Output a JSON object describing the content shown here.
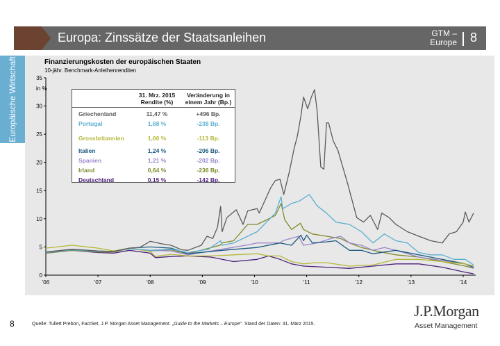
{
  "header": {
    "title": "Europa: Zinssätze der Staatsanleihen",
    "gtm": "GTM –",
    "gtm2": "Europe",
    "page": "8"
  },
  "sidebar": {
    "label": "Europäische Wirtschaft"
  },
  "footer": {
    "page": "8",
    "source_pre": "Quelle: Tullett Prebon, FactSet, J.P. Morgan Asset Management. „",
    "source_italic": "Guide to the Markets – Europe",
    "source_post": "\". Stand der Daten: 31. März 2015.",
    "logo": "J.P.Morgan",
    "logo_sub": "Asset Management"
  },
  "table": {
    "col2": "31. Mrz. 2015 Rendite (%)",
    "col2a": "31. Mrz. 2015",
    "col2b": "Rendite (%)",
    "col3a": "Veränderung in",
    "col3b": "einem Jahr (Bp.)",
    "rows": [
      {
        "country": "Griechenland",
        "yield": "11,47 %",
        "change": "+496 Bp."
      },
      {
        "country": "Portugal",
        "yield": "1,68 %",
        "change": "-238 Bp."
      },
      {
        "country": "Grossbritannien",
        "yield": "1,60 %",
        "change": "-113 Bp."
      },
      {
        "country": "Italien",
        "yield": "1,24 %",
        "change": "-206 Bp."
      },
      {
        "country": "Spanien",
        "yield": "1,21 %",
        "change": "-202 Bp."
      },
      {
        "country": "Irland",
        "yield": "0,64 %",
        "change": "-236 Bp."
      },
      {
        "country": "Deutschland",
        "yield": "0,15 %",
        "change": "-142 Bp."
      }
    ]
  },
  "chart_data": {
    "type": "line",
    "title": "Finanzierungskosten der europäischen Staaten",
    "subtitle": "10-jähr. Benchmark-Anleihenrenditen",
    "ylabel": "in %",
    "ylim": [
      0,
      35
    ],
    "yticks": [
      0,
      5,
      10,
      15,
      20,
      25,
      30,
      35
    ],
    "xlim": [
      2006,
      2014.25
    ],
    "xticks": [
      {
        "v": 2006,
        "label": "'06"
      },
      {
        "v": 2007,
        "label": "'07"
      },
      {
        "v": 2008,
        "label": "'08"
      },
      {
        "v": 2009,
        "label": "'09"
      },
      {
        "v": 2010,
        "label": "'10"
      },
      {
        "v": 2011,
        "label": "'11"
      },
      {
        "v": 2012,
        "label": "'12"
      },
      {
        "v": 2013,
        "label": "'13"
      },
      {
        "v": 2014,
        "label": "'14"
      }
    ],
    "grid": false,
    "legend": "table top-left",
    "series": [
      {
        "name": "Griechenland",
        "color": "#5a5a5a",
        "points": [
          [
            2006,
            4.1
          ],
          [
            2006.5,
            4.6
          ],
          [
            2007,
            4.3
          ],
          [
            2007.3,
            4.2
          ],
          [
            2007.6,
            4.8
          ],
          [
            2007.8,
            4.9
          ],
          [
            2008,
            6.0
          ],
          [
            2008.2,
            5.6
          ],
          [
            2008.4,
            5.3
          ],
          [
            2008.6,
            4.5
          ],
          [
            2008.72,
            4.4
          ],
          [
            2008.98,
            5.3
          ],
          [
            2009.09,
            6.9
          ],
          [
            2009.2,
            6.5
          ],
          [
            2009.29,
            8.5
          ],
          [
            2009.35,
            12.2
          ],
          [
            2009.38,
            7.7
          ],
          [
            2009.47,
            10.2
          ],
          [
            2009.65,
            11.6
          ],
          [
            2009.78,
            9.0
          ],
          [
            2009.87,
            11.4
          ],
          [
            2010.05,
            11.8
          ],
          [
            2010.09,
            11.0
          ],
          [
            2010.31,
            15.5
          ],
          [
            2010.4,
            16.8
          ],
          [
            2010.49,
            17.0
          ],
          [
            2010.56,
            14.3
          ],
          [
            2010.67,
            18.4
          ],
          [
            2010.76,
            22.5
          ],
          [
            2010.82,
            24.6
          ],
          [
            2010.89,
            28.3
          ],
          [
            2010.94,
            31.6
          ],
          [
            2011.02,
            29.5
          ],
          [
            2011.09,
            31.6
          ],
          [
            2011.15,
            32.9
          ],
          [
            2011.2,
            29.1
          ],
          [
            2011.27,
            19.2
          ],
          [
            2011.33,
            18.8
          ],
          [
            2011.38,
            27.0
          ],
          [
            2011.42,
            27.0
          ],
          [
            2011.51,
            23.8
          ],
          [
            2011.6,
            22.1
          ],
          [
            2011.78,
            16.4
          ],
          [
            2011.96,
            10.2
          ],
          [
            2012.09,
            9.4
          ],
          [
            2012.22,
            10.6
          ],
          [
            2012.36,
            8.1
          ],
          [
            2012.44,
            11.0
          ],
          [
            2012.58,
            10.2
          ],
          [
            2012.71,
            9.0
          ],
          [
            2012.93,
            7.7
          ],
          [
            2013.15,
            6.9
          ],
          [
            2013.38,
            6.1
          ],
          [
            2013.6,
            5.7
          ],
          [
            2013.73,
            7.3
          ],
          [
            2013.87,
            7.7
          ],
          [
            2014,
            9.4
          ],
          [
            2014.04,
            11.2
          ],
          [
            2014.11,
            9.4
          ],
          [
            2014.2,
            11.0
          ]
        ]
      },
      {
        "name": "Portugal",
        "color": "#5aaed0",
        "points": [
          [
            2006,
            4.0
          ],
          [
            2006.5,
            4.5
          ],
          [
            2007,
            4.2
          ],
          [
            2007.3,
            4.2
          ],
          [
            2007.6,
            4.7
          ],
          [
            2008,
            4.4
          ],
          [
            2008.4,
            4.6
          ],
          [
            2008.72,
            4.0
          ],
          [
            2009.12,
            4.6
          ],
          [
            2009.35,
            6.1
          ],
          [
            2009.38,
            5.3
          ],
          [
            2009.6,
            5.7
          ],
          [
            2009.87,
            6.9
          ],
          [
            2010.05,
            7.7
          ],
          [
            2010.23,
            9.4
          ],
          [
            2010.4,
            11.0
          ],
          [
            2010.51,
            13.9
          ],
          [
            2010.54,
            11.8
          ],
          [
            2010.71,
            12.7
          ],
          [
            2010.85,
            13.1
          ],
          [
            2011.05,
            14.3
          ],
          [
            2011.2,
            12.3
          ],
          [
            2011.38,
            11.0
          ],
          [
            2011.56,
            9.4
          ],
          [
            2011.82,
            9.0
          ],
          [
            2012.05,
            7.7
          ],
          [
            2012.27,
            5.7
          ],
          [
            2012.49,
            7.3
          ],
          [
            2012.71,
            6.1
          ],
          [
            2012.93,
            5.7
          ],
          [
            2013.15,
            4.0
          ],
          [
            2013.38,
            3.6
          ],
          [
            2013.6,
            3.6
          ],
          [
            2013.82,
            2.8
          ],
          [
            2014.04,
            2.8
          ],
          [
            2014.2,
            1.8
          ]
        ]
      },
      {
        "name": "Grossbritannien",
        "color": "#b5b83a",
        "points": [
          [
            2006,
            4.8
          ],
          [
            2006.5,
            5.3
          ],
          [
            2007,
            4.8
          ],
          [
            2007.3,
            4.3
          ],
          [
            2007.6,
            4.8
          ],
          [
            2008,
            4.2
          ],
          [
            2008.1,
            3.3
          ],
          [
            2008.4,
            3.7
          ],
          [
            2008.72,
            3.4
          ],
          [
            2009.16,
            3.4
          ],
          [
            2009.6,
            3.6
          ],
          [
            2010.05,
            3.8
          ],
          [
            2010.27,
            3.4
          ],
          [
            2010.49,
            3.4
          ],
          [
            2010.71,
            2.4
          ],
          [
            2010.94,
            2.0
          ],
          [
            2011.16,
            2.2
          ],
          [
            2011.38,
            2.2
          ],
          [
            2011.82,
            1.6
          ],
          [
            2012.27,
            1.8
          ],
          [
            2012.71,
            2.8
          ],
          [
            2013.15,
            2.8
          ],
          [
            2013.6,
            2.4
          ],
          [
            2014.04,
            2.0
          ],
          [
            2014.2,
            1.6
          ]
        ]
      },
      {
        "name": "Italien",
        "color": "#1c5a80",
        "points": [
          [
            2006,
            4.0
          ],
          [
            2006.5,
            4.5
          ],
          [
            2007,
            4.2
          ],
          [
            2007.3,
            4.2
          ],
          [
            2007.6,
            4.8
          ],
          [
            2008,
            5.0
          ],
          [
            2008.4,
            4.8
          ],
          [
            2008.72,
            3.8
          ],
          [
            2009.38,
            4.4
          ],
          [
            2010.05,
            4.9
          ],
          [
            2010.49,
            5.7
          ],
          [
            2010.71,
            5.3
          ],
          [
            2010.89,
            7.1
          ],
          [
            2010.94,
            6.1
          ],
          [
            2011.0,
            7.1
          ],
          [
            2011.11,
            5.7
          ],
          [
            2011.38,
            5.9
          ],
          [
            2011.56,
            6.1
          ],
          [
            2011.82,
            4.4
          ],
          [
            2012.05,
            4.4
          ],
          [
            2012.27,
            3.8
          ],
          [
            2012.71,
            4.4
          ],
          [
            2013.15,
            3.6
          ],
          [
            2013.6,
            2.8
          ],
          [
            2014.04,
            2.0
          ],
          [
            2014.2,
            1.4
          ]
        ]
      },
      {
        "name": "Spanien",
        "color": "#9a86cc",
        "points": [
          [
            2006,
            4.0
          ],
          [
            2006.5,
            4.5
          ],
          [
            2007,
            4.2
          ],
          [
            2007.3,
            4.2
          ],
          [
            2007.6,
            4.7
          ],
          [
            2008,
            4.4
          ],
          [
            2008.4,
            4.3
          ],
          [
            2008.72,
            3.6
          ],
          [
            2009.38,
            4.6
          ],
          [
            2009.83,
            5.3
          ],
          [
            2010.05,
            5.7
          ],
          [
            2010.49,
            5.7
          ],
          [
            2010.54,
            6.1
          ],
          [
            2010.85,
            6.9
          ],
          [
            2010.89,
            6.1
          ],
          [
            2010.94,
            5.3
          ],
          [
            2011.2,
            5.7
          ],
          [
            2011.47,
            6.5
          ],
          [
            2011.65,
            6.9
          ],
          [
            2011.82,
            5.7
          ],
          [
            2012.05,
            5.3
          ],
          [
            2012.27,
            4.4
          ],
          [
            2012.49,
            4.9
          ],
          [
            2012.71,
            4.4
          ],
          [
            2013.15,
            3.2
          ],
          [
            2013.6,
            2.6
          ],
          [
            2014.04,
            2.0
          ],
          [
            2014.2,
            1.2
          ]
        ]
      },
      {
        "name": "Irland",
        "color": "#7f8a2a",
        "points": [
          [
            2006,
            3.9
          ],
          [
            2006.5,
            4.4
          ],
          [
            2007,
            4.1
          ],
          [
            2007.3,
            4.1
          ],
          [
            2007.6,
            4.7
          ],
          [
            2008,
            4.3
          ],
          [
            2008.4,
            4.5
          ],
          [
            2008.72,
            3.8
          ],
          [
            2009.34,
            5.3
          ],
          [
            2009.38,
            5.7
          ],
          [
            2009.6,
            6.1
          ],
          [
            2009.87,
            9.0
          ],
          [
            2010.05,
            9.0
          ],
          [
            2010.23,
            9.8
          ],
          [
            2010.4,
            10.6
          ],
          [
            2010.51,
            12.7
          ],
          [
            2010.58,
            9.8
          ],
          [
            2010.71,
            8.1
          ],
          [
            2010.88,
            9.2
          ],
          [
            2010.94,
            8.1
          ],
          [
            2011.11,
            7.3
          ],
          [
            2011.38,
            6.9
          ],
          [
            2011.65,
            6.5
          ],
          [
            2011.82,
            5.7
          ],
          [
            2012.05,
            4.9
          ],
          [
            2012.27,
            4.4
          ],
          [
            2012.71,
            3.6
          ],
          [
            2013.15,
            3.2
          ],
          [
            2013.6,
            2.4
          ],
          [
            2014.04,
            1.6
          ],
          [
            2014.2,
            1.2
          ]
        ]
      },
      {
        "name": "Deutschland",
        "color": "#4a1f7a",
        "points": [
          [
            2006,
            3.9
          ],
          [
            2006.5,
            4.4
          ],
          [
            2007,
            4.0
          ],
          [
            2007.3,
            3.9
          ],
          [
            2007.6,
            4.4
          ],
          [
            2008,
            3.9
          ],
          [
            2008.1,
            3.1
          ],
          [
            2008.4,
            3.3
          ],
          [
            2008.72,
            3.4
          ],
          [
            2009.16,
            3.2
          ],
          [
            2009.6,
            2.4
          ],
          [
            2010.05,
            2.8
          ],
          [
            2010.27,
            3.4
          ],
          [
            2010.49,
            2.8
          ],
          [
            2010.71,
            2.0
          ],
          [
            2010.94,
            1.6
          ],
          [
            2011.38,
            1.4
          ],
          [
            2011.82,
            1.2
          ],
          [
            2012.27,
            1.6
          ],
          [
            2012.71,
            2.0
          ],
          [
            2013.15,
            2.0
          ],
          [
            2013.6,
            1.4
          ],
          [
            2014.04,
            0.5
          ],
          [
            2014.2,
            0.25
          ]
        ]
      }
    ]
  }
}
